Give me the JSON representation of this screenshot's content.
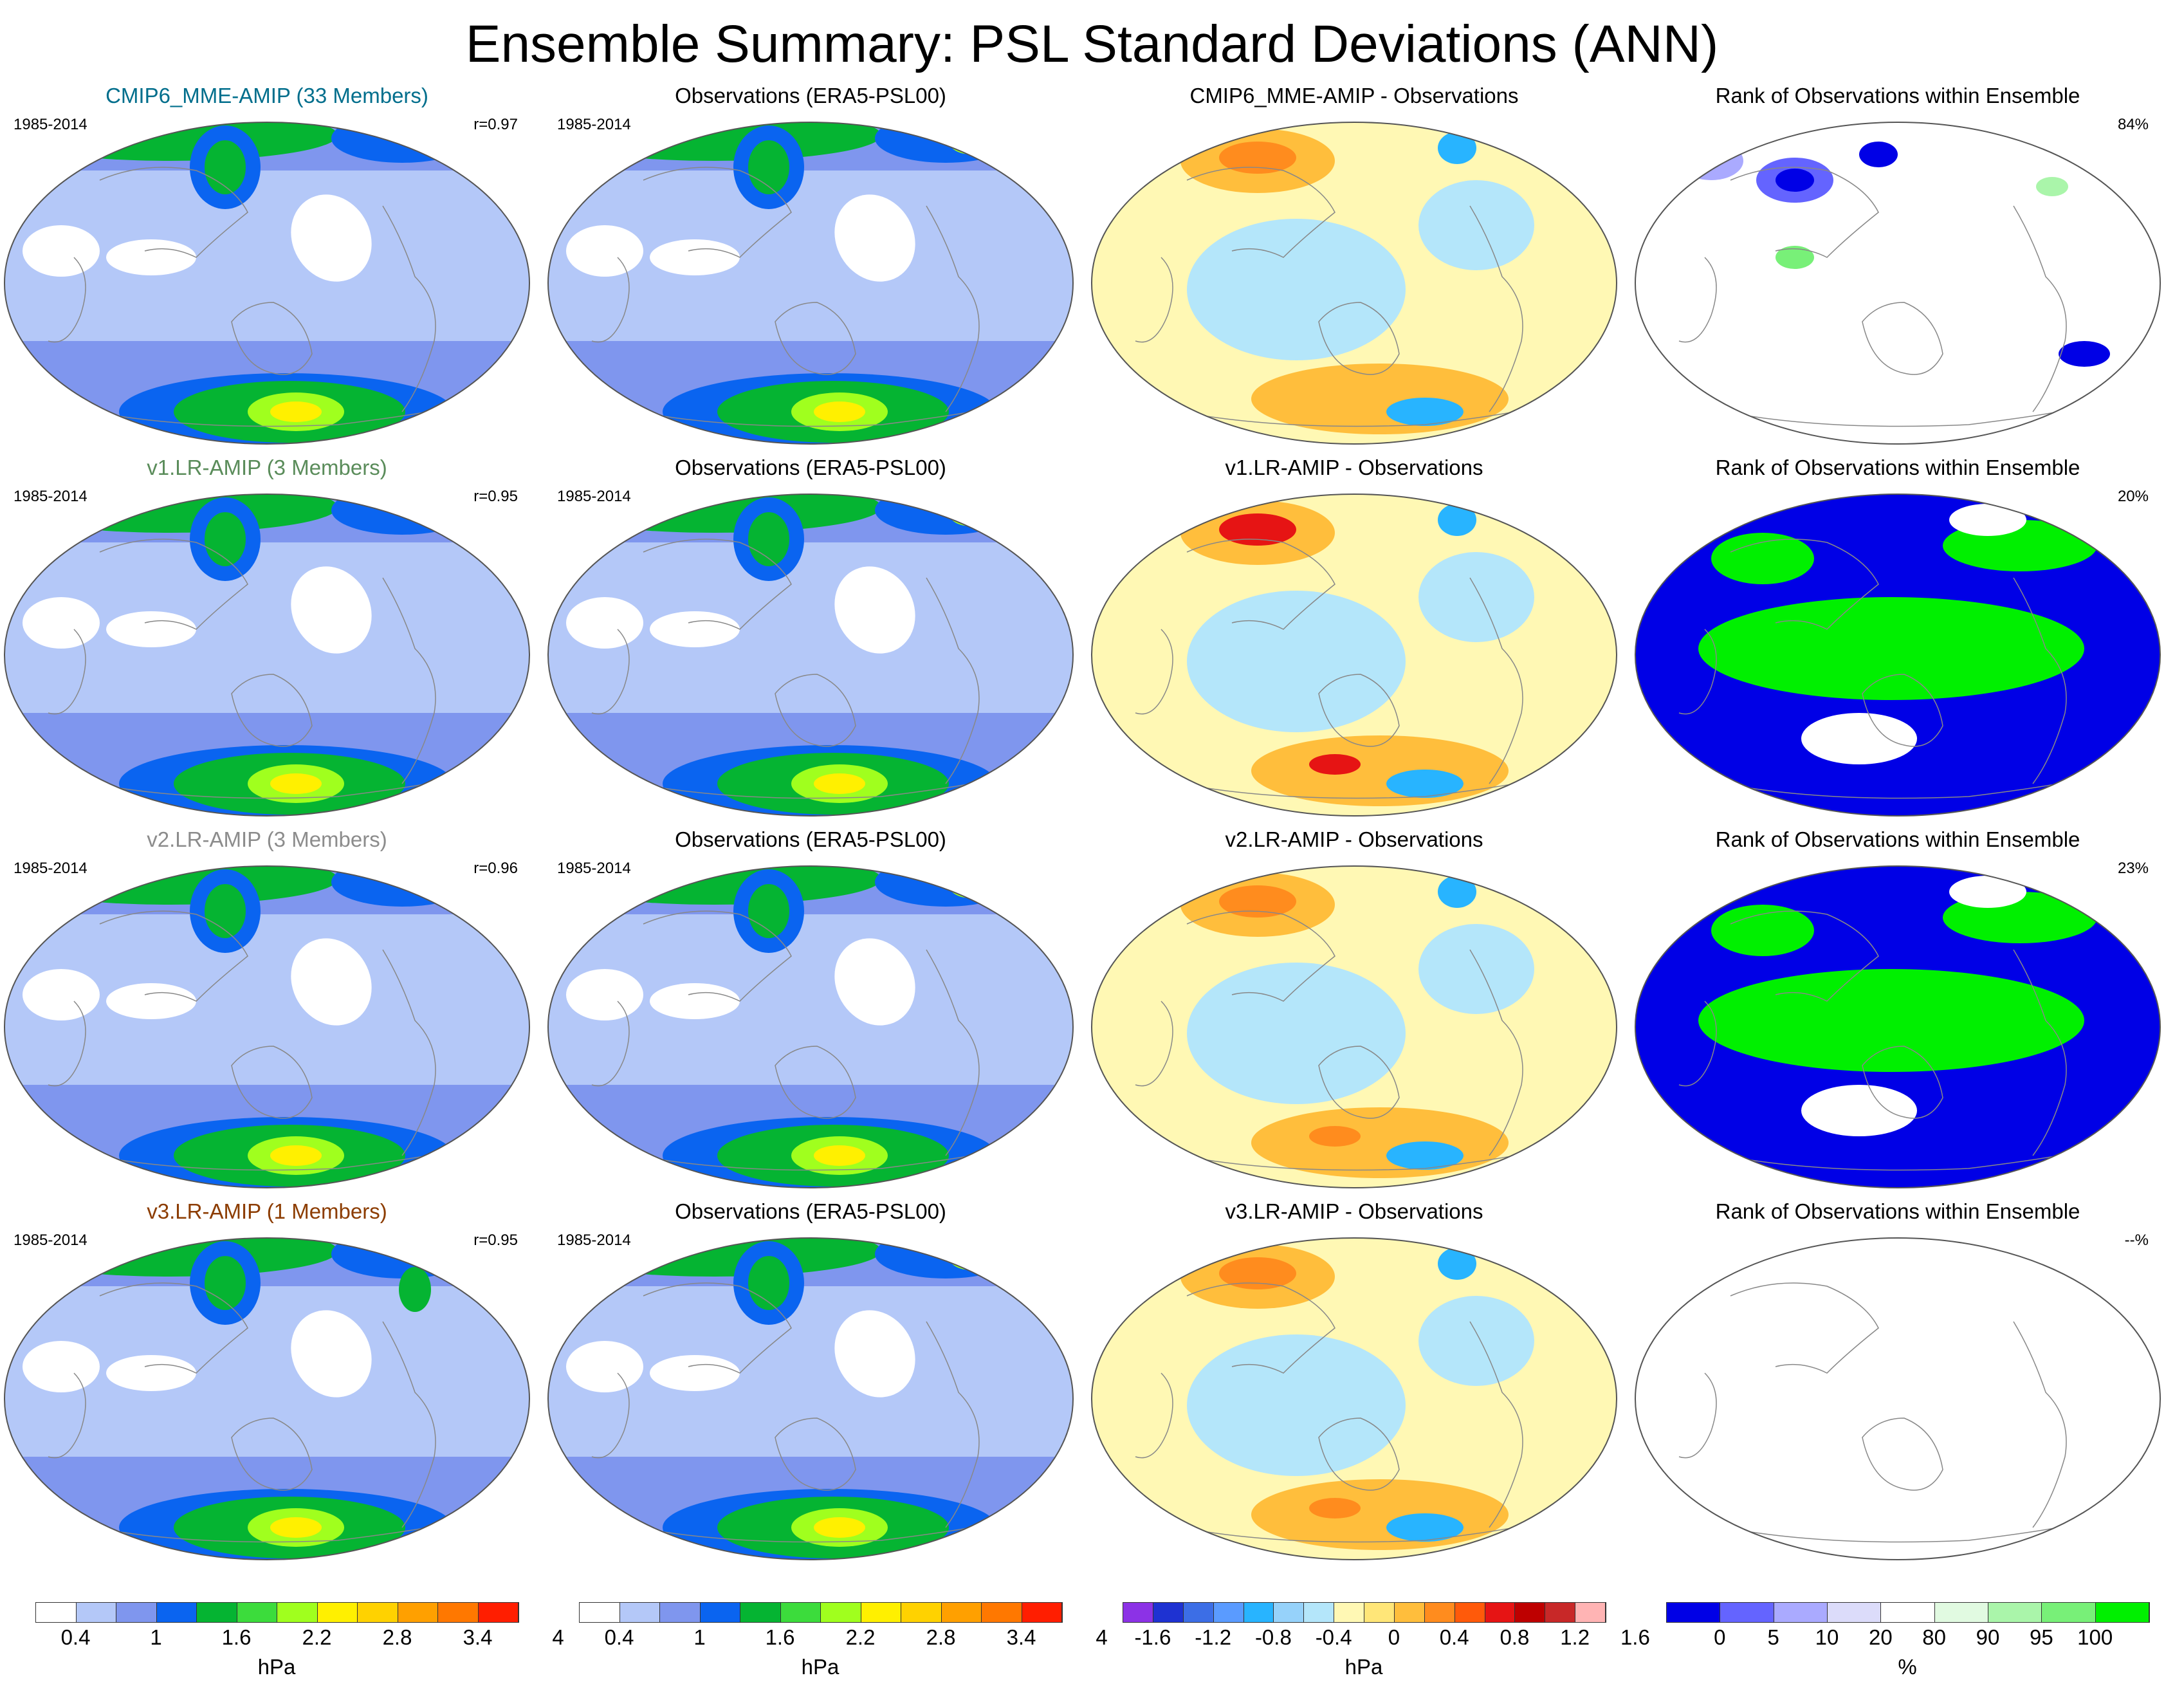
{
  "title": "Ensemble Summary: PSL Standard Deviations (ANN)",
  "colors": {
    "std": [
      "#ffffff",
      "#b4c8f8",
      "#7f96ee",
      "#0a64f0",
      "#05b432",
      "#3cdc3c",
      "#a0ff1e",
      "#fff000",
      "#ffd200",
      "#ffa000",
      "#ff7800",
      "#ff1e00"
    ],
    "diff": [
      "#8c32e6",
      "#1e32d2",
      "#3c6ee6",
      "#5a9bff",
      "#28b4ff",
      "#96d2fa",
      "#b4e6fa",
      "#fff8b4",
      "#ffe678",
      "#ffbe3c",
      "#ff8c1e",
      "#ff5a0a",
      "#e61414",
      "#be0000",
      "#c82828",
      "#ffb4b4"
    ],
    "rank": [
      "#0000e6",
      "#6464ff",
      "#aaaaff",
      "#dcdcfa",
      "#ffffff",
      "#e1fae1",
      "#aaf5aa",
      "#78f078",
      "#00f000"
    ],
    "ocean": "#b4c8f8",
    "coast": "#888888"
  },
  "rows": [
    {
      "model": {
        "title": "CMIP6_MME-AMIP (33 Members)",
        "title_color": "#006e8c",
        "period": "1985-2014",
        "r": "r=0.97"
      },
      "obs": {
        "title": "Observations (ERA5-PSL00)",
        "period": "1985-2014"
      },
      "diff": {
        "title": "CMIP6_MME-AMIP - Observations"
      },
      "rank": {
        "title": "Rank of Observations within Ensemble",
        "pct": "84%",
        "mode": "mostly-white"
      }
    },
    {
      "model": {
        "title": "v1.LR-AMIP (3 Members)",
        "title_color": "#5a8c5a",
        "period": "1985-2014",
        "r": "r=0.95"
      },
      "obs": {
        "title": "Observations (ERA5-PSL00)",
        "period": "1985-2014"
      },
      "diff": {
        "title": "v1.LR-AMIP - Observations"
      },
      "rank": {
        "title": "Rank of Observations within Ensemble",
        "pct": "20%",
        "mode": "blue-green"
      }
    },
    {
      "model": {
        "title": "v2.LR-AMIP (3 Members)",
        "title_color": "#8c8c8c",
        "period": "1985-2014",
        "r": "r=0.96"
      },
      "obs": {
        "title": "Observations (ERA5-PSL00)",
        "period": "1985-2014"
      },
      "diff": {
        "title": "v2.LR-AMIP - Observations"
      },
      "rank": {
        "title": "Rank of Observations within Ensemble",
        "pct": "23%",
        "mode": "blue-green"
      }
    },
    {
      "model": {
        "title": "v3.LR-AMIP (1 Members)",
        "title_color": "#8c3c00",
        "period": "1985-2014",
        "r": "r=0.95"
      },
      "obs": {
        "title": "Observations (ERA5-PSL00)",
        "period": "1985-2014"
      },
      "diff": {
        "title": "v3.LR-AMIP - Observations"
      },
      "rank": {
        "title": "Rank of Observations within Ensemble",
        "pct": "--%",
        "mode": "empty"
      }
    }
  ],
  "colorbars": [
    {
      "kind": "std",
      "labels": [
        "0.4",
        "1",
        "1.6",
        "2.2",
        "2.8",
        "3.4",
        "4"
      ],
      "unit": "hPa"
    },
    {
      "kind": "std",
      "labels": [
        "0.4",
        "1",
        "1.6",
        "2.2",
        "2.8",
        "3.4",
        "4"
      ],
      "unit": "hPa"
    },
    {
      "kind": "diff",
      "labels": [
        "-1.6",
        "-1.2",
        "-0.8",
        "-0.4",
        "0",
        "0.4",
        "0.8",
        "1.2",
        "1.6"
      ],
      "unit": "hPa"
    },
    {
      "kind": "rank",
      "labels": [
        "0",
        "5",
        "10",
        "20",
        "80",
        "90",
        "95",
        "100"
      ],
      "unit": "%"
    }
  ]
}
